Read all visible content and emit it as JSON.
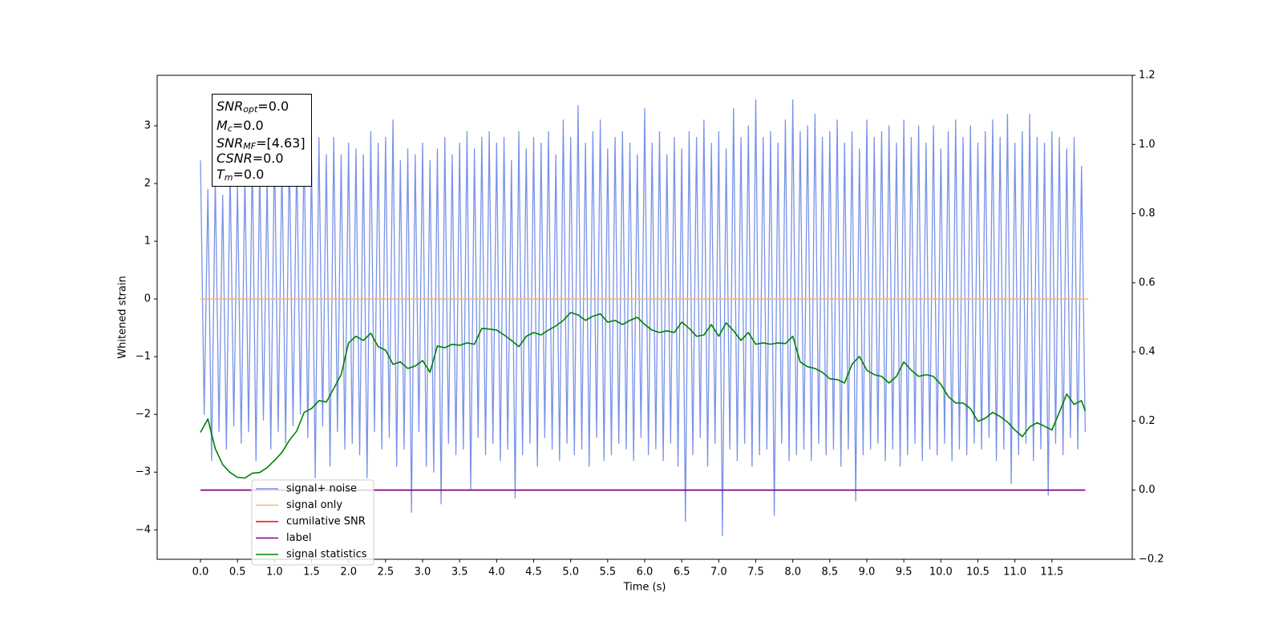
{
  "chart_data": {
    "type": "line",
    "xlabel": "Time (s)",
    "ylabel": "Whitened strain",
    "xlim": [
      -0.585,
      12.585
    ],
    "ylim": [
      -4.51,
      3.875
    ],
    "y2lim": [
      -0.2,
      1.2
    ],
    "xticks": [
      {
        "value": 0,
        "label": "0.0"
      },
      0.5,
      {
        "value": 1,
        "label": "1.0"
      },
      1.5,
      {
        "value": 2,
        "label": "2.0"
      },
      2.5,
      {
        "value": 3,
        "label": "3.0"
      },
      3.5,
      {
        "value": 4,
        "label": "4.0"
      },
      4.5,
      {
        "value": 5,
        "label": "5.0"
      },
      5.5,
      {
        "value": 6,
        "label": "6.0"
      },
      6.5,
      {
        "value": 7,
        "label": "7.0"
      },
      7.5,
      {
        "value": 8,
        "label": "8.0"
      },
      8.5,
      {
        "value": 9,
        "label": "9.0"
      },
      9.5,
      {
        "value": 10,
        "label": "10.0"
      },
      10.5,
      {
        "value": 11,
        "label": "11.0"
      },
      11.5
    ],
    "yticks": [
      {
        "value": -4,
        "label": "−4"
      },
      {
        "value": -3,
        "label": "−3"
      },
      {
        "value": -2,
        "label": "−2"
      },
      {
        "value": -1,
        "label": "−1"
      },
      0,
      1,
      2,
      3
    ],
    "y2ticks": [
      {
        "value": -0.2,
        "label": "−0.2"
      },
      {
        "value": 0,
        "label": "0.0"
      },
      0.2,
      0.4,
      0.6,
      0.8,
      {
        "value": 1,
        "label": "1.0"
      },
      1.2
    ],
    "legend": "lower left",
    "annotation": [
      {
        "symbol": "SNR",
        "sub": "opt",
        "text": "=0.0"
      },
      {
        "symbol": "M",
        "sub": "c",
        "text": "=0.0"
      },
      {
        "symbol": "SNR",
        "sub": "MF",
        "text": "=[4.63]"
      },
      {
        "symbol": "CSNR",
        "sub": null,
        "text": "=0.0"
      },
      {
        "symbol": "T",
        "sub": "m",
        "text": "=0.0"
      }
    ],
    "series": [
      {
        "name": "signal+ noise",
        "color": "#7893e8",
        "axis": "y",
        "x": [
          0,
          0.05,
          0.1,
          0.15,
          0.2,
          0.25,
          0.3,
          0.35,
          0.4,
          0.45,
          0.5,
          0.55,
          0.6,
          0.65,
          0.7,
          0.75,
          0.8,
          0.85,
          0.9,
          0.95,
          1,
          1.05,
          1.1,
          1.15,
          1.2,
          1.25,
          1.3,
          1.35,
          1.4,
          1.45,
          1.5,
          1.55,
          1.6,
          1.65,
          1.7,
          1.75,
          1.8,
          1.85,
          1.9,
          1.95,
          2,
          2.05,
          2.1,
          2.15,
          2.2,
          2.25,
          2.3,
          2.35,
          2.4,
          2.45,
          2.5,
          2.55,
          2.6,
          2.65,
          2.7,
          2.75,
          2.8,
          2.85,
          2.9,
          2.95,
          3,
          3.05,
          3.1,
          3.15,
          3.2,
          3.25,
          3.3,
          3.35,
          3.4,
          3.45,
          3.5,
          3.55,
          3.6,
          3.65,
          3.7,
          3.75,
          3.8,
          3.85,
          3.9,
          3.95,
          4,
          4.05,
          4.1,
          4.15,
          4.2,
          4.25,
          4.3,
          4.35,
          4.4,
          4.45,
          4.5,
          4.55,
          4.6,
          4.65,
          4.7,
          4.75,
          4.8,
          4.85,
          4.9,
          4.95,
          5,
          5.05,
          5.1,
          5.15,
          5.2,
          5.25,
          5.3,
          5.35,
          5.4,
          5.45,
          5.5,
          5.55,
          5.6,
          5.65,
          5.7,
          5.75,
          5.8,
          5.85,
          5.9,
          5.95,
          6,
          6.05,
          6.1,
          6.15,
          6.2,
          6.25,
          6.3,
          6.35,
          6.4,
          6.45,
          6.5,
          6.55,
          6.6,
          6.65,
          6.7,
          6.75,
          6.8,
          6.85,
          6.9,
          6.95,
          7,
          7.05,
          7.1,
          7.15,
          7.2,
          7.25,
          7.3,
          7.35,
          7.4,
          7.45,
          7.5,
          7.55,
          7.6,
          7.65,
          7.7,
          7.75,
          7.8,
          7.85,
          7.9,
          7.95,
          8,
          8.05,
          8.1,
          8.15,
          8.2,
          8.25,
          8.3,
          8.35,
          8.4,
          8.45,
          8.5,
          8.55,
          8.6,
          8.65,
          8.7,
          8.75,
          8.8,
          8.85,
          8.9,
          8.95,
          9,
          9.05,
          9.1,
          9.15,
          9.2,
          9.25,
          9.3,
          9.35,
          9.4,
          9.45,
          9.5,
          9.55,
          9.6,
          9.65,
          9.7,
          9.75,
          9.8,
          9.85,
          9.9,
          9.95,
          10,
          10.05,
          10.1,
          10.15,
          10.2,
          10.25,
          10.3,
          10.35,
          10.4,
          10.45,
          10.5,
          10.55,
          10.6,
          10.65,
          10.7,
          10.75,
          10.8,
          10.85,
          10.9,
          10.95,
          11,
          11.05,
          11.1,
          11.15,
          11.2,
          11.25,
          11.3,
          11.35,
          11.4,
          11.45,
          11.5,
          11.55,
          11.6,
          11.65,
          11.7,
          11.75,
          11.8,
          11.85,
          11.9,
          11.95
        ],
        "values": [
          2.4,
          -2.0,
          1.9,
          -2.8,
          2.1,
          -2.3,
          1.8,
          -2.6,
          2.3,
          -2.2,
          2.0,
          -2.5,
          2.2,
          -2.3,
          2.5,
          -2.8,
          2.3,
          -2.1,
          2.1,
          -2.6,
          2.7,
          -2.3,
          2.4,
          -2.5,
          2.6,
          -2.2,
          2.5,
          -2.0,
          2.7,
          -2.4,
          2.4,
          -3.1,
          2.8,
          -2.2,
          2.5,
          -2.9,
          2.8,
          -2.3,
          2.5,
          -2.6,
          2.7,
          -2.5,
          2.6,
          -2.7,
          2.5,
          -3.1,
          2.9,
          -2.3,
          2.7,
          -2.6,
          2.8,
          -2.4,
          3.1,
          -2.9,
          2.4,
          -2.6,
          2.6,
          -3.7,
          2.5,
          -2.3,
          2.7,
          -2.9,
          2.4,
          -3.0,
          2.6,
          -3.55,
          2.8,
          -2.5,
          2.5,
          -2.7,
          2.7,
          -2.6,
          2.9,
          -3.3,
          2.6,
          -2.4,
          2.8,
          -2.7,
          2.9,
          -2.5,
          2.7,
          -2.8,
          2.8,
          -2.6,
          2.4,
          -3.45,
          2.9,
          -2.7,
          2.6,
          -2.5,
          2.8,
          -2.9,
          2.7,
          -2.4,
          2.9,
          -2.6,
          2.5,
          -2.8,
          3.1,
          -2.5,
          2.8,
          -2.7,
          3.35,
          -2.6,
          2.7,
          -2.9,
          2.9,
          -2.4,
          3.1,
          -2.8,
          2.6,
          -2.7,
          2.8,
          -2.5,
          2.9,
          -2.6,
          2.7,
          -2.8,
          2.5,
          -2.4,
          3.3,
          -2.7,
          2.7,
          -2.6,
          2.9,
          -2.8,
          2.5,
          -2.5,
          2.8,
          -2.9,
          2.6,
          -3.85,
          2.9,
          -2.7,
          2.8,
          -2.4,
          3.1,
          -2.9,
          2.7,
          -2.5,
          2.9,
          -4.1,
          2.6,
          -2.6,
          3.3,
          -2.8,
          2.8,
          -2.5,
          3.0,
          -2.9,
          3.45,
          -2.7,
          2.8,
          -2.6,
          2.9,
          -3.75,
          2.7,
          -2.5,
          3.1,
          -2.8,
          3.45,
          -2.7,
          2.9,
          -2.6,
          3.0,
          -2.8,
          3.2,
          -2.5,
          2.8,
          -2.7,
          2.9,
          -2.6,
          3.1,
          -2.9,
          2.7,
          -2.6,
          2.9,
          -3.5,
          2.6,
          -2.7,
          3.1,
          -2.6,
          2.8,
          -2.5,
          2.9,
          -2.8,
          3.0,
          -2.6,
          2.7,
          -2.9,
          3.1,
          -2.7,
          2.8,
          -2.5,
          3.0,
          -2.8,
          2.7,
          -2.6,
          3.0,
          -2.7,
          2.6,
          -2.5,
          2.9,
          -2.8,
          3.1,
          -2.6,
          2.8,
          -2.7,
          3.0,
          -2.5,
          2.7,
          -2.6,
          2.9,
          -2.4,
          3.1,
          -2.8,
          2.8,
          -2.6,
          3.2,
          -3.2,
          2.7,
          -2.7,
          2.9,
          -2.5,
          3.2,
          -2.8,
          2.8,
          -2.6,
          2.7,
          -3.4,
          2.9,
          -2.5,
          2.8,
          -2.7,
          2.6,
          -2.4,
          2.8,
          -2.6,
          2.3,
          -2.3
        ]
      },
      {
        "name": "signal only",
        "color": "#f6b56b",
        "axis": "y",
        "x": [
          0,
          11.99
        ],
        "values": [
          0,
          0
        ]
      },
      {
        "name": "cumilative SNR",
        "color": "#ff0000",
        "axis": "y2",
        "x": [
          0,
          11.95
        ],
        "values": [
          0,
          0
        ]
      },
      {
        "name": "label",
        "color": "#800080",
        "axis": "y2",
        "x": [
          0,
          11.95
        ],
        "values": [
          0,
          0
        ]
      },
      {
        "name": "signal statistics",
        "color": "#008000",
        "axis": "y2",
        "x": [
          0,
          0.1,
          0.2,
          0.3,
          0.4,
          0.5,
          0.6,
          0.7,
          0.8,
          0.9,
          1,
          1.1,
          1.2,
          1.3,
          1.4,
          1.5,
          1.6,
          1.7,
          1.8,
          1.9,
          2,
          2.1,
          2.2,
          2.3,
          2.4,
          2.5,
          2.6,
          2.7,
          2.8,
          2.9,
          3,
          3.1,
          3.2,
          3.3,
          3.4,
          3.5,
          3.6,
          3.7,
          3.8,
          3.9,
          4,
          4.1,
          4.2,
          4.3,
          4.4,
          4.5,
          4.6,
          4.7,
          4.8,
          4.9,
          5,
          5.1,
          5.2,
          5.3,
          5.4,
          5.5,
          5.6,
          5.7,
          5.8,
          5.9,
          6,
          6.1,
          6.2,
          6.3,
          6.4,
          6.5,
          6.6,
          6.7,
          6.8,
          6.9,
          7,
          7.1,
          7.2,
          7.3,
          7.4,
          7.5,
          7.6,
          7.7,
          7.8,
          7.9,
          8,
          8.1,
          8.2,
          8.3,
          8.4,
          8.5,
          8.6,
          8.7,
          8.8,
          8.9,
          9,
          9.1,
          9.2,
          9.3,
          9.4,
          9.5,
          9.6,
          9.7,
          9.8,
          9.9,
          10,
          10.1,
          10.2,
          10.3,
          10.4,
          10.5,
          10.6,
          10.7,
          10.8,
          10.9,
          11,
          11.1,
          11.2,
          11.3,
          11.4,
          11.5,
          11.6,
          11.7,
          11.8,
          11.9,
          11.95
        ],
        "values": [
          0.167,
          0.206,
          0.12,
          0.074,
          0.051,
          0.037,
          0.035,
          0.049,
          0.051,
          0.065,
          0.086,
          0.109,
          0.144,
          0.171,
          0.225,
          0.236,
          0.259,
          0.255,
          0.294,
          0.334,
          0.426,
          0.445,
          0.433,
          0.454,
          0.415,
          0.405,
          0.364,
          0.371,
          0.352,
          0.359,
          0.375,
          0.341,
          0.417,
          0.412,
          0.422,
          0.419,
          0.426,
          0.422,
          0.468,
          0.466,
          0.463,
          0.449,
          0.433,
          0.415,
          0.445,
          0.456,
          0.449,
          0.463,
          0.475,
          0.491,
          0.514,
          0.507,
          0.491,
          0.503,
          0.51,
          0.486,
          0.491,
          0.479,
          0.491,
          0.5,
          0.479,
          0.463,
          0.456,
          0.461,
          0.456,
          0.486,
          0.468,
          0.445,
          0.449,
          0.479,
          0.445,
          0.484,
          0.461,
          0.433,
          0.456,
          0.422,
          0.426,
          0.422,
          0.426,
          0.424,
          0.445,
          0.371,
          0.357,
          0.352,
          0.341,
          0.322,
          0.32,
          0.31,
          0.364,
          0.387,
          0.347,
          0.334,
          0.329,
          0.31,
          0.329,
          0.371,
          0.347,
          0.329,
          0.334,
          0.329,
          0.306,
          0.271,
          0.252,
          0.252,
          0.236,
          0.199,
          0.208,
          0.225,
          0.213,
          0.197,
          0.174,
          0.155,
          0.183,
          0.195,
          0.185,
          0.174,
          0.225,
          0.278,
          0.248,
          0.259,
          0.229
        ]
      }
    ]
  }
}
